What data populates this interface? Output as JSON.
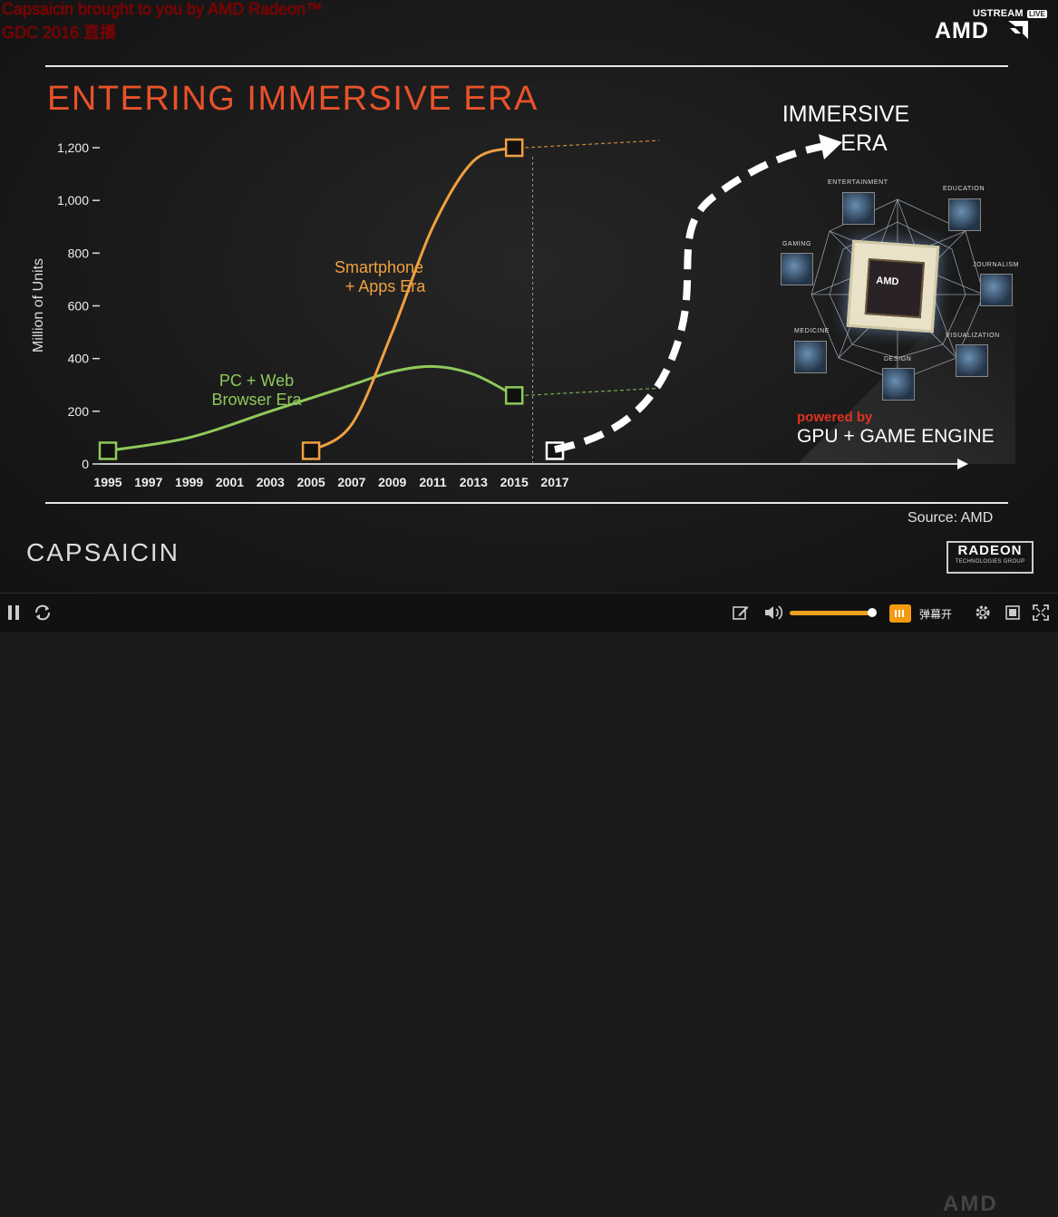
{
  "stream_overlay": {
    "line1": "Capsaicin brought to you by AMD Radeon™",
    "line2": "GDC 2016 直播"
  },
  "ustream": {
    "brand": "USTREAM",
    "live": "LIVE"
  },
  "amd_logo": "AMD",
  "slide": {
    "heading": "ENTERING IMMERSIVE ERA",
    "immersive_era_line1": "IMMERSIVE",
    "immersive_era_line2": "ERA",
    "powered_by": "powered by",
    "gpu_engine": "GPU + GAME ENGINE",
    "source": "Source: AMD",
    "capsaicin": "CAPSAICIN",
    "radeon": "RADEON",
    "radeon_sub": "TECHNOLOGIES GROUP",
    "chip_label": "AMD",
    "icon_labels": {
      "entertainment": "ENTERTAINMENT",
      "education": "EDUCATION",
      "gaming": "GAMING",
      "journalism": "JOURNALISM",
      "medicine": "MEDICINE",
      "visualization": "VISUALIZATION",
      "design": "DESIGN"
    }
  },
  "chart_data": {
    "type": "line",
    "ylabel": "Million of Units",
    "ylim": [
      0,
      1200
    ],
    "yticks": [
      0,
      200,
      400,
      600,
      800,
      1000,
      1200
    ],
    "yticklabels": [
      "0",
      "200",
      "400",
      "600",
      "800",
      "1,000",
      "1,200"
    ],
    "xticks": [
      1995,
      1997,
      1999,
      2001,
      2003,
      2005,
      2007,
      2009,
      2011,
      2013,
      2015,
      2017
    ],
    "xticklabels": [
      "1995",
      "1997",
      "1999",
      "2001",
      "2003",
      "2005",
      "2007",
      "2009",
      "2011",
      "2013",
      "2015",
      "2017"
    ],
    "series": [
      {
        "name": "PC + Web Browser Era",
        "label_lines": [
          "PC + Web",
          "Browser Era"
        ],
        "color": "#8fc95a",
        "points": [
          [
            1995,
            50
          ],
          [
            1999,
            100
          ],
          [
            2003,
            200
          ],
          [
            2007,
            300
          ],
          [
            2009,
            350
          ],
          [
            2011,
            370
          ],
          [
            2013,
            340
          ],
          [
            2015,
            260
          ]
        ],
        "marker_years": [
          1995,
          2015
        ]
      },
      {
        "name": "Smartphone + Apps Era",
        "label_lines": [
          "Smartphone",
          "+ Apps Era"
        ],
        "color": "#f0a040",
        "points": [
          [
            2005,
            50
          ],
          [
            2007,
            150
          ],
          [
            2009,
            500
          ],
          [
            2011,
            900
          ],
          [
            2013,
            1150
          ],
          [
            2015,
            1200
          ]
        ],
        "marker_years": [
          2005,
          2015
        ]
      },
      {
        "name": "Immersive Era",
        "color": "#ffffff",
        "points": [
          [
            2017,
            50
          ]
        ],
        "marker_years": [
          2017
        ]
      }
    ]
  },
  "player": {
    "danmaku": "弹幕开",
    "volume": 0.95,
    "bg_watermark": "AMD"
  }
}
